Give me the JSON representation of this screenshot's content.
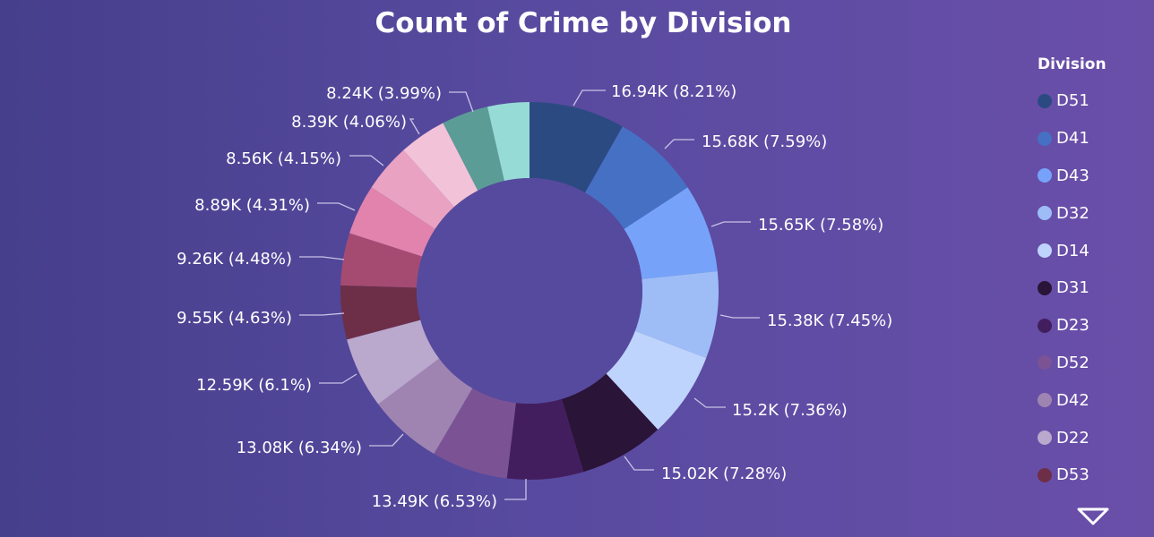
{
  "chart_data": {
    "type": "pie",
    "variant": "donut",
    "title": "Count of Crime by Division",
    "legend": {
      "title": "Division",
      "placement": "right",
      "visible_items": [
        "D51",
        "D41",
        "D43",
        "D32",
        "D14",
        "D31",
        "D23",
        "D52",
        "D42",
        "D22",
        "D53"
      ]
    },
    "slices": [
      {
        "label": "16.94K (8.21%)",
        "value": 16940,
        "percent": 8.21,
        "color": "#2c4a82",
        "division": "D51"
      },
      {
        "label": "15.68K (7.59%)",
        "value": 15680,
        "percent": 7.59,
        "color": "#4670c4",
        "division": "D41"
      },
      {
        "label": "15.65K (7.58%)",
        "value": 15650,
        "percent": 7.58,
        "color": "#76a3f9",
        "division": "D43"
      },
      {
        "label": "15.38K (7.45%)",
        "value": 15380,
        "percent": 7.45,
        "color": "#9ebdf7",
        "division": "D32"
      },
      {
        "label": "15.2K (7.36%)",
        "value": 15200,
        "percent": 7.36,
        "color": "#bfd4fc",
        "division": "D14"
      },
      {
        "label": "15.02K (7.28%)",
        "value": 15020,
        "percent": 7.28,
        "color": "#2a1437",
        "division": "D31"
      },
      {
        "label": "13.49K (6.53%)",
        "value": 13490,
        "percent": 6.53,
        "color": "#431e5f",
        "division": "D23"
      },
      {
        "label": "13.49K (6.53%)",
        "value": 13490,
        "percent": 6.53,
        "color": "#7b5394",
        "division": "D52"
      },
      {
        "label": "13.08K (6.34%)",
        "value": 13080,
        "percent": 6.34,
        "color": "#9f84b2",
        "division": "D42"
      },
      {
        "label": "12.59K (6.1%)",
        "value": 12590,
        "percent": 6.1,
        "color": "#baa8cd",
        "division": "D22"
      },
      {
        "label": "9.55K (4.63%)",
        "value": 9550,
        "percent": 4.63,
        "color": "#6d2f48",
        "division": "D53"
      },
      {
        "label": "9.26K (4.48%)",
        "value": 9260,
        "percent": 4.48,
        "color": "#a54b72",
        "color_note": "",
        "division": ""
      },
      {
        "label": "8.89K (4.31%)",
        "value": 8890,
        "percent": 4.31,
        "color": "#e183ad",
        "division": ""
      },
      {
        "label": "8.56K (4.15%)",
        "value": 8560,
        "percent": 4.15,
        "color": "#eaa2c3",
        "division": ""
      },
      {
        "label": "8.39K (4.06%)",
        "value": 8390,
        "percent": 4.06,
        "color": "#f2c2d9",
        "division": ""
      },
      {
        "label": "8.24K (3.99%)",
        "value": 8240,
        "percent": 3.99,
        "color": "#5b9c96",
        "division": ""
      },
      {
        "label": "",
        "value": 7400,
        "percent": 3.59,
        "color": "#97dbd6",
        "division": ""
      }
    ]
  }
}
